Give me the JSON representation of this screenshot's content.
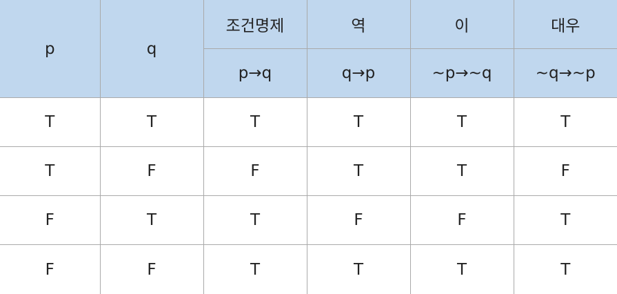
{
  "table": {
    "headers": {
      "p": "p",
      "q": "q",
      "columns": [
        {
          "name": "조건명제",
          "formula": "p→q"
        },
        {
          "name": "역",
          "formula": "q→p"
        },
        {
          "name": "이",
          "formula": "~p→~q"
        },
        {
          "name": "대우",
          "formula": "~q→~p"
        }
      ]
    },
    "rows": [
      [
        "T",
        "T",
        "T",
        "T",
        "T",
        "T"
      ],
      [
        "T",
        "F",
        "F",
        "T",
        "T",
        "F"
      ],
      [
        "F",
        "T",
        "T",
        "F",
        "F",
        "T"
      ],
      [
        "F",
        "F",
        "T",
        "T",
        "T",
        "T"
      ]
    ],
    "colors": {
      "header_background": "#c0d7ee",
      "border": "#a9a9a9",
      "text": "#222222"
    }
  }
}
